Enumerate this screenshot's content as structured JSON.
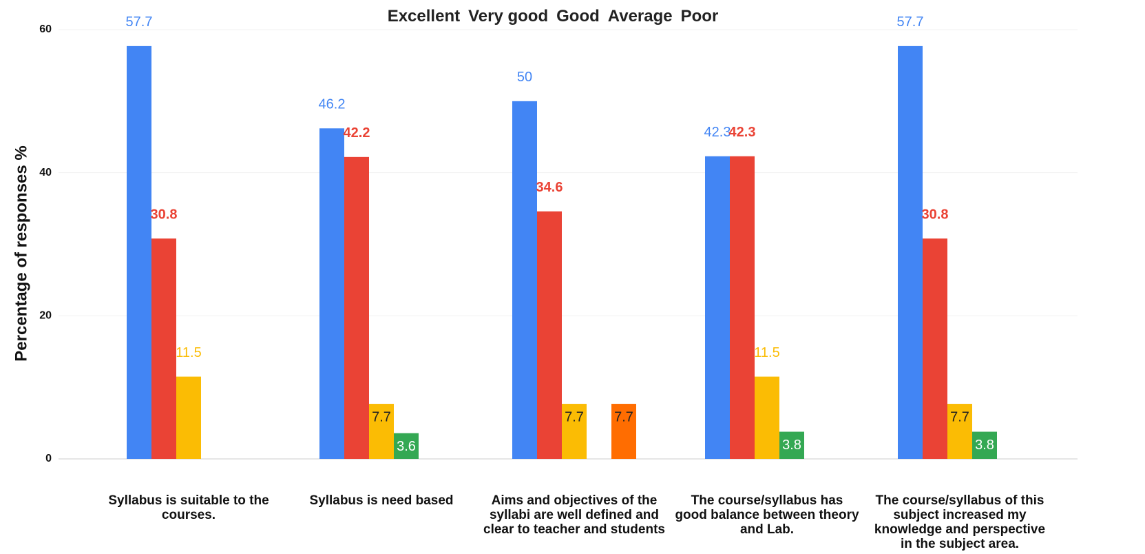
{
  "chart_data": {
    "type": "bar",
    "y_label": "Percentage of responses %",
    "categories": [
      "Syllabus is suitable to the courses.",
      "Syllabus is need based",
      "Aims and objectives of the syllabi are well defined and clear to teacher and students",
      "The course/syllabus has good balance between theory and Lab.",
      "The course/syllabus of this subject increased my knowledge and perspective in the subject area."
    ],
    "series": [
      {
        "name": "Excellent",
        "color": "#4285f4",
        "values": [
          57.7,
          46.2,
          50,
          42.3,
          57.7
        ]
      },
      {
        "name": "Very good",
        "color": "#ea4335",
        "values": [
          30.8,
          42.2,
          34.6,
          42.3,
          30.8
        ]
      },
      {
        "name": "Good",
        "color": "#fbbc04",
        "values": [
          11.5,
          7.7,
          7.7,
          11.5,
          7.7
        ]
      },
      {
        "name": "Average",
        "color": "#34a853",
        "values": [
          null,
          3.6,
          null,
          3.8,
          3.8
        ]
      },
      {
        "name": "Poor",
        "color": "#ff6d01",
        "values": [
          null,
          null,
          7.7,
          null,
          null
        ]
      }
    ],
    "ylim": [
      0,
      60
    ],
    "yticks": [
      0,
      20,
      40,
      60
    ],
    "grid": true
  }
}
